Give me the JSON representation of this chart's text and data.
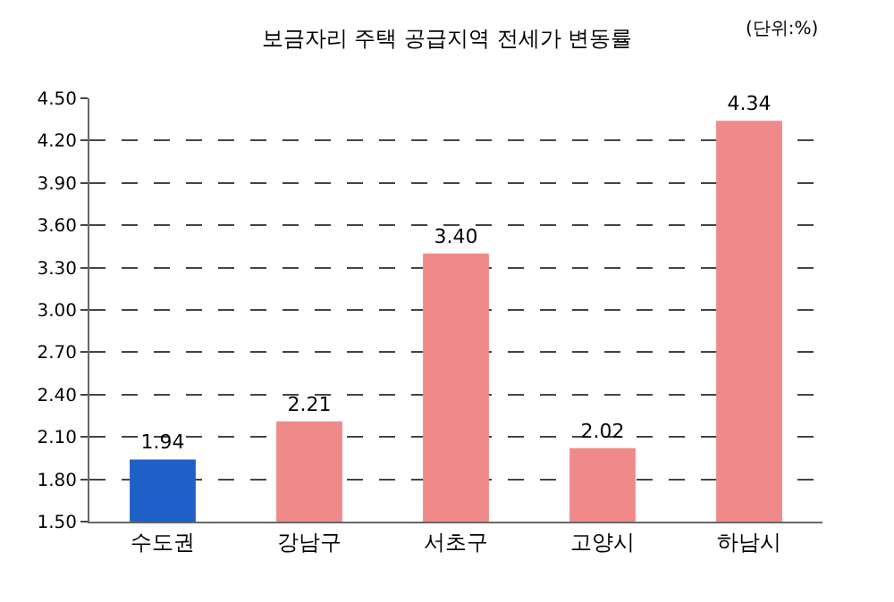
{
  "chart_data": {
    "type": "bar",
    "title": "보금자리 주택 공급지역 전세가 변동률",
    "annotations": [
      "(단위:%)"
    ],
    "categories": [
      "수도권",
      "강남구",
      "서초구",
      "고양시",
      "하남시"
    ],
    "values": [
      1.94,
      2.21,
      3.4,
      2.02,
      4.34
    ],
    "value_labels": [
      "1.94",
      "2.21",
      "3.40",
      "2.02",
      "4.34"
    ],
    "colors": [
      "#1f5fc8",
      "#f08a8a",
      "#f08a8a",
      "#f08a8a",
      "#f08a8a"
    ],
    "ylim": [
      1.5,
      4.5
    ],
    "yticks": [
      {
        "value": 1.5,
        "label": "1.50"
      },
      {
        "value": 1.8,
        "label": "1.80"
      },
      {
        "value": 2.1,
        "label": "2.10"
      },
      {
        "value": 2.4,
        "label": "2.40"
      },
      {
        "value": 2.7,
        "label": "2.70"
      },
      {
        "value": 3.0,
        "label": "3.00"
      },
      {
        "value": 3.3,
        "label": "3.30"
      },
      {
        "value": 3.6,
        "label": "3.60"
      },
      {
        "value": 3.9,
        "label": "3.90"
      },
      {
        "value": 4.2,
        "label": "4.20"
      },
      {
        "value": 4.5,
        "label": "4.50"
      }
    ],
    "grid": "y",
    "line_style": "dashed"
  }
}
